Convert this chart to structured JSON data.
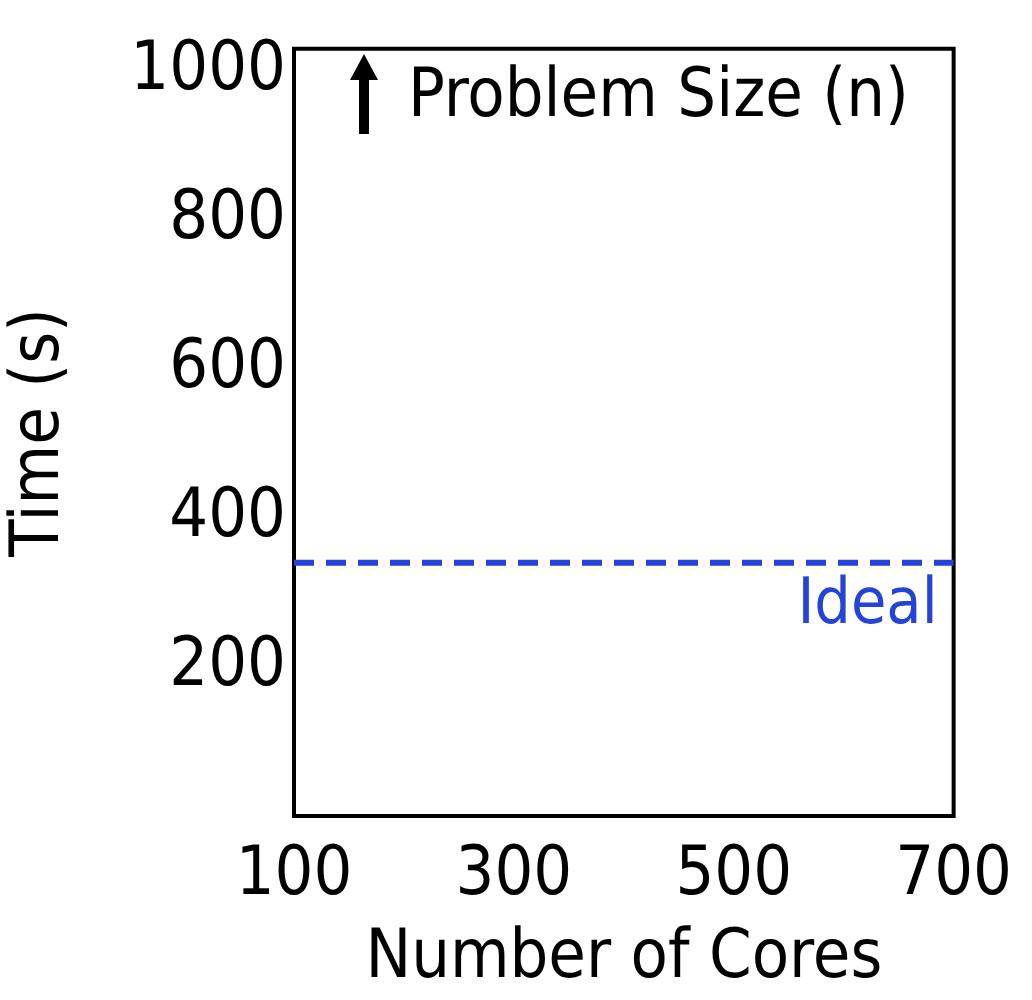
{
  "chart_data": {
    "type": "line",
    "xlabel": "Number of Cores",
    "ylabel": "Time (s)",
    "xlim": [
      100,
      700
    ],
    "xticks": [
      100,
      300,
      500,
      700
    ],
    "ylim": [
      0,
      1030
    ],
    "yticks": [
      200,
      400,
      600,
      800,
      1000
    ],
    "ref_lines": [
      {
        "axis": "y",
        "value": 340,
        "label": "Ideal",
        "color": "#2443d8",
        "line_style": "dashed"
      }
    ],
    "annotations": [
      "Problem Size (n)"
    ],
    "grid": false,
    "legend": false
  }
}
